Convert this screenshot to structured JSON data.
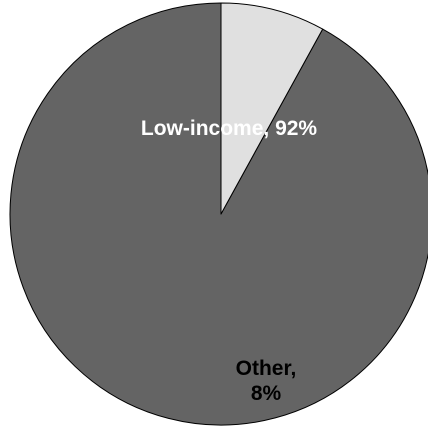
{
  "chart_data": {
    "type": "pie",
    "categories": [
      "Low-income",
      "Other"
    ],
    "values": [
      92,
      8
    ],
    "colors": [
      "#646464",
      "#e0e0e0"
    ],
    "label_colors": [
      "#ffffff",
      "#000000"
    ],
    "labels": [
      {
        "lines": [
          "Low-income, 92%"
        ]
      },
      {
        "lines": [
          "Other,",
          "8%"
        ]
      }
    ],
    "start": "12 o'clock",
    "direction": "counterclockwise",
    "title": "",
    "legend": "none"
  }
}
